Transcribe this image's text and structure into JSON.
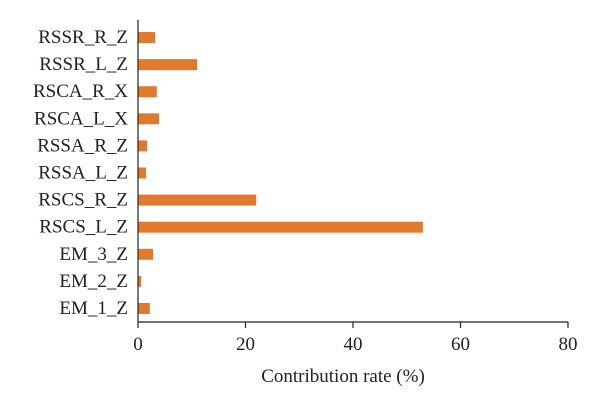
{
  "chart_data": {
    "type": "bar",
    "orientation": "horizontal",
    "categories": [
      "RSSR_R_Z",
      "RSSR_L_Z",
      "RSCA_R_X",
      "RSCA_L_X",
      "RSSA_R_Z",
      "RSSA_L_Z",
      "RSCS_R_Z",
      "RSCS_L_Z",
      "EM_3_Z",
      "EM_2_Z",
      "EM_1_Z"
    ],
    "values": [
      3.2,
      11.0,
      3.5,
      3.9,
      1.7,
      1.5,
      22.0,
      53.0,
      2.8,
      0.6,
      2.2
    ],
    "xlabel": "Contribution rate (%)",
    "ylabel": "",
    "xlim": [
      0,
      80
    ],
    "xticks": [
      0,
      20,
      40,
      60,
      80
    ],
    "grid": false,
    "bar_color": "#E07B2E"
  }
}
